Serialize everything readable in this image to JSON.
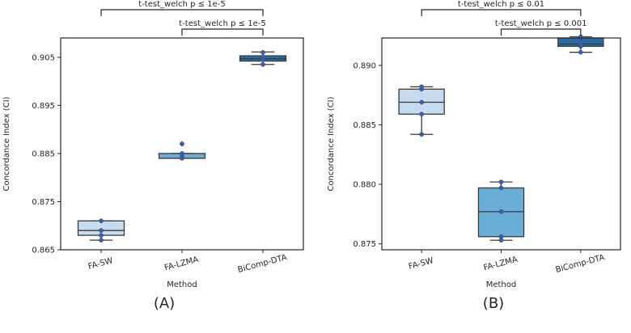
{
  "chart_data": [
    {
      "type": "box",
      "panel_label": "(A)",
      "xlabel": "Method",
      "ylabel": "Concordance Index (CI)",
      "ylim": [
        0.865,
        0.909
      ],
      "yticks": [
        0.865,
        0.875,
        0.885,
        0.895,
        0.905
      ],
      "ytick_labels": [
        "0.865",
        "0.875",
        "0.885",
        "0.895",
        "0.905"
      ],
      "categories": [
        "FA-SW",
        "FA-LZMA",
        "BiComp-DTA"
      ],
      "colors": [
        "#c6dbef",
        "#6aaed6",
        "#2b6ca6"
      ],
      "boxes": [
        {
          "q1": 0.868,
          "median": 0.869,
          "q3": 0.871,
          "whisker_low": 0.867,
          "whisker_high": 0.871,
          "outliers": []
        },
        {
          "q1": 0.884,
          "median": 0.884,
          "q3": 0.885,
          "whisker_low": 0.884,
          "whisker_high": 0.885,
          "outliers": [
            0.887
          ]
        },
        {
          "q1": 0.9042,
          "median": 0.9047,
          "q3": 0.9053,
          "whisker_low": 0.9035,
          "whisker_high": 0.9061,
          "outliers": []
        }
      ],
      "points": [
        [
          0.867,
          0.868,
          0.869,
          0.871
        ],
        [
          0.884,
          0.8845,
          0.885,
          0.887
        ],
        [
          0.9035,
          0.9045,
          0.905,
          0.906
        ]
      ],
      "annotations": [
        {
          "from": 0,
          "to": 2,
          "text": "t-test_welch p ≤ 1e-5",
          "level": 2
        },
        {
          "from": 1,
          "to": 2,
          "text": "t-test_welch p ≤ 1e-5",
          "level": 1
        }
      ]
    },
    {
      "type": "box",
      "panel_label": "(B)",
      "xlabel": "Method",
      "ylabel": "Concordance Index (CI)",
      "ylim": [
        0.8745,
        0.8923
      ],
      "yticks": [
        0.875,
        0.88,
        0.885,
        0.89
      ],
      "ytick_labels": [
        "0.875",
        "0.880",
        "0.885",
        "0.890"
      ],
      "categories": [
        "FA-SW",
        "FA-LZMA",
        "BiComp-DTA"
      ],
      "colors": [
        "#c6dbef",
        "#6aaed6",
        "#2b6ca6"
      ],
      "boxes": [
        {
          "q1": 0.8859,
          "median": 0.8869,
          "q3": 0.888,
          "whisker_low": 0.8842,
          "whisker_high": 0.8882,
          "outliers": []
        },
        {
          "q1": 0.8756,
          "median": 0.8777,
          "q3": 0.8797,
          "whisker_low": 0.8753,
          "whisker_high": 0.8802,
          "outliers": []
        },
        {
          "q1": 0.8916,
          "median": 0.8918,
          "q3": 0.8923,
          "whisker_low": 0.8911,
          "whisker_high": 0.8924,
          "outliers": []
        }
      ],
      "points": [
        [
          0.8842,
          0.8859,
          0.8869,
          0.888,
          0.8882
        ],
        [
          0.8753,
          0.8756,
          0.8777,
          0.8797,
          0.8802
        ],
        [
          0.8911,
          0.8916,
          0.8918,
          0.8923,
          0.8924
        ]
      ],
      "annotations": [
        {
          "from": 0,
          "to": 2,
          "text": "t-test_welch p ≤ 0.01",
          "level": 2
        },
        {
          "from": 1,
          "to": 2,
          "text": "t-test_welch p ≤ 0.001",
          "level": 1
        }
      ]
    }
  ]
}
